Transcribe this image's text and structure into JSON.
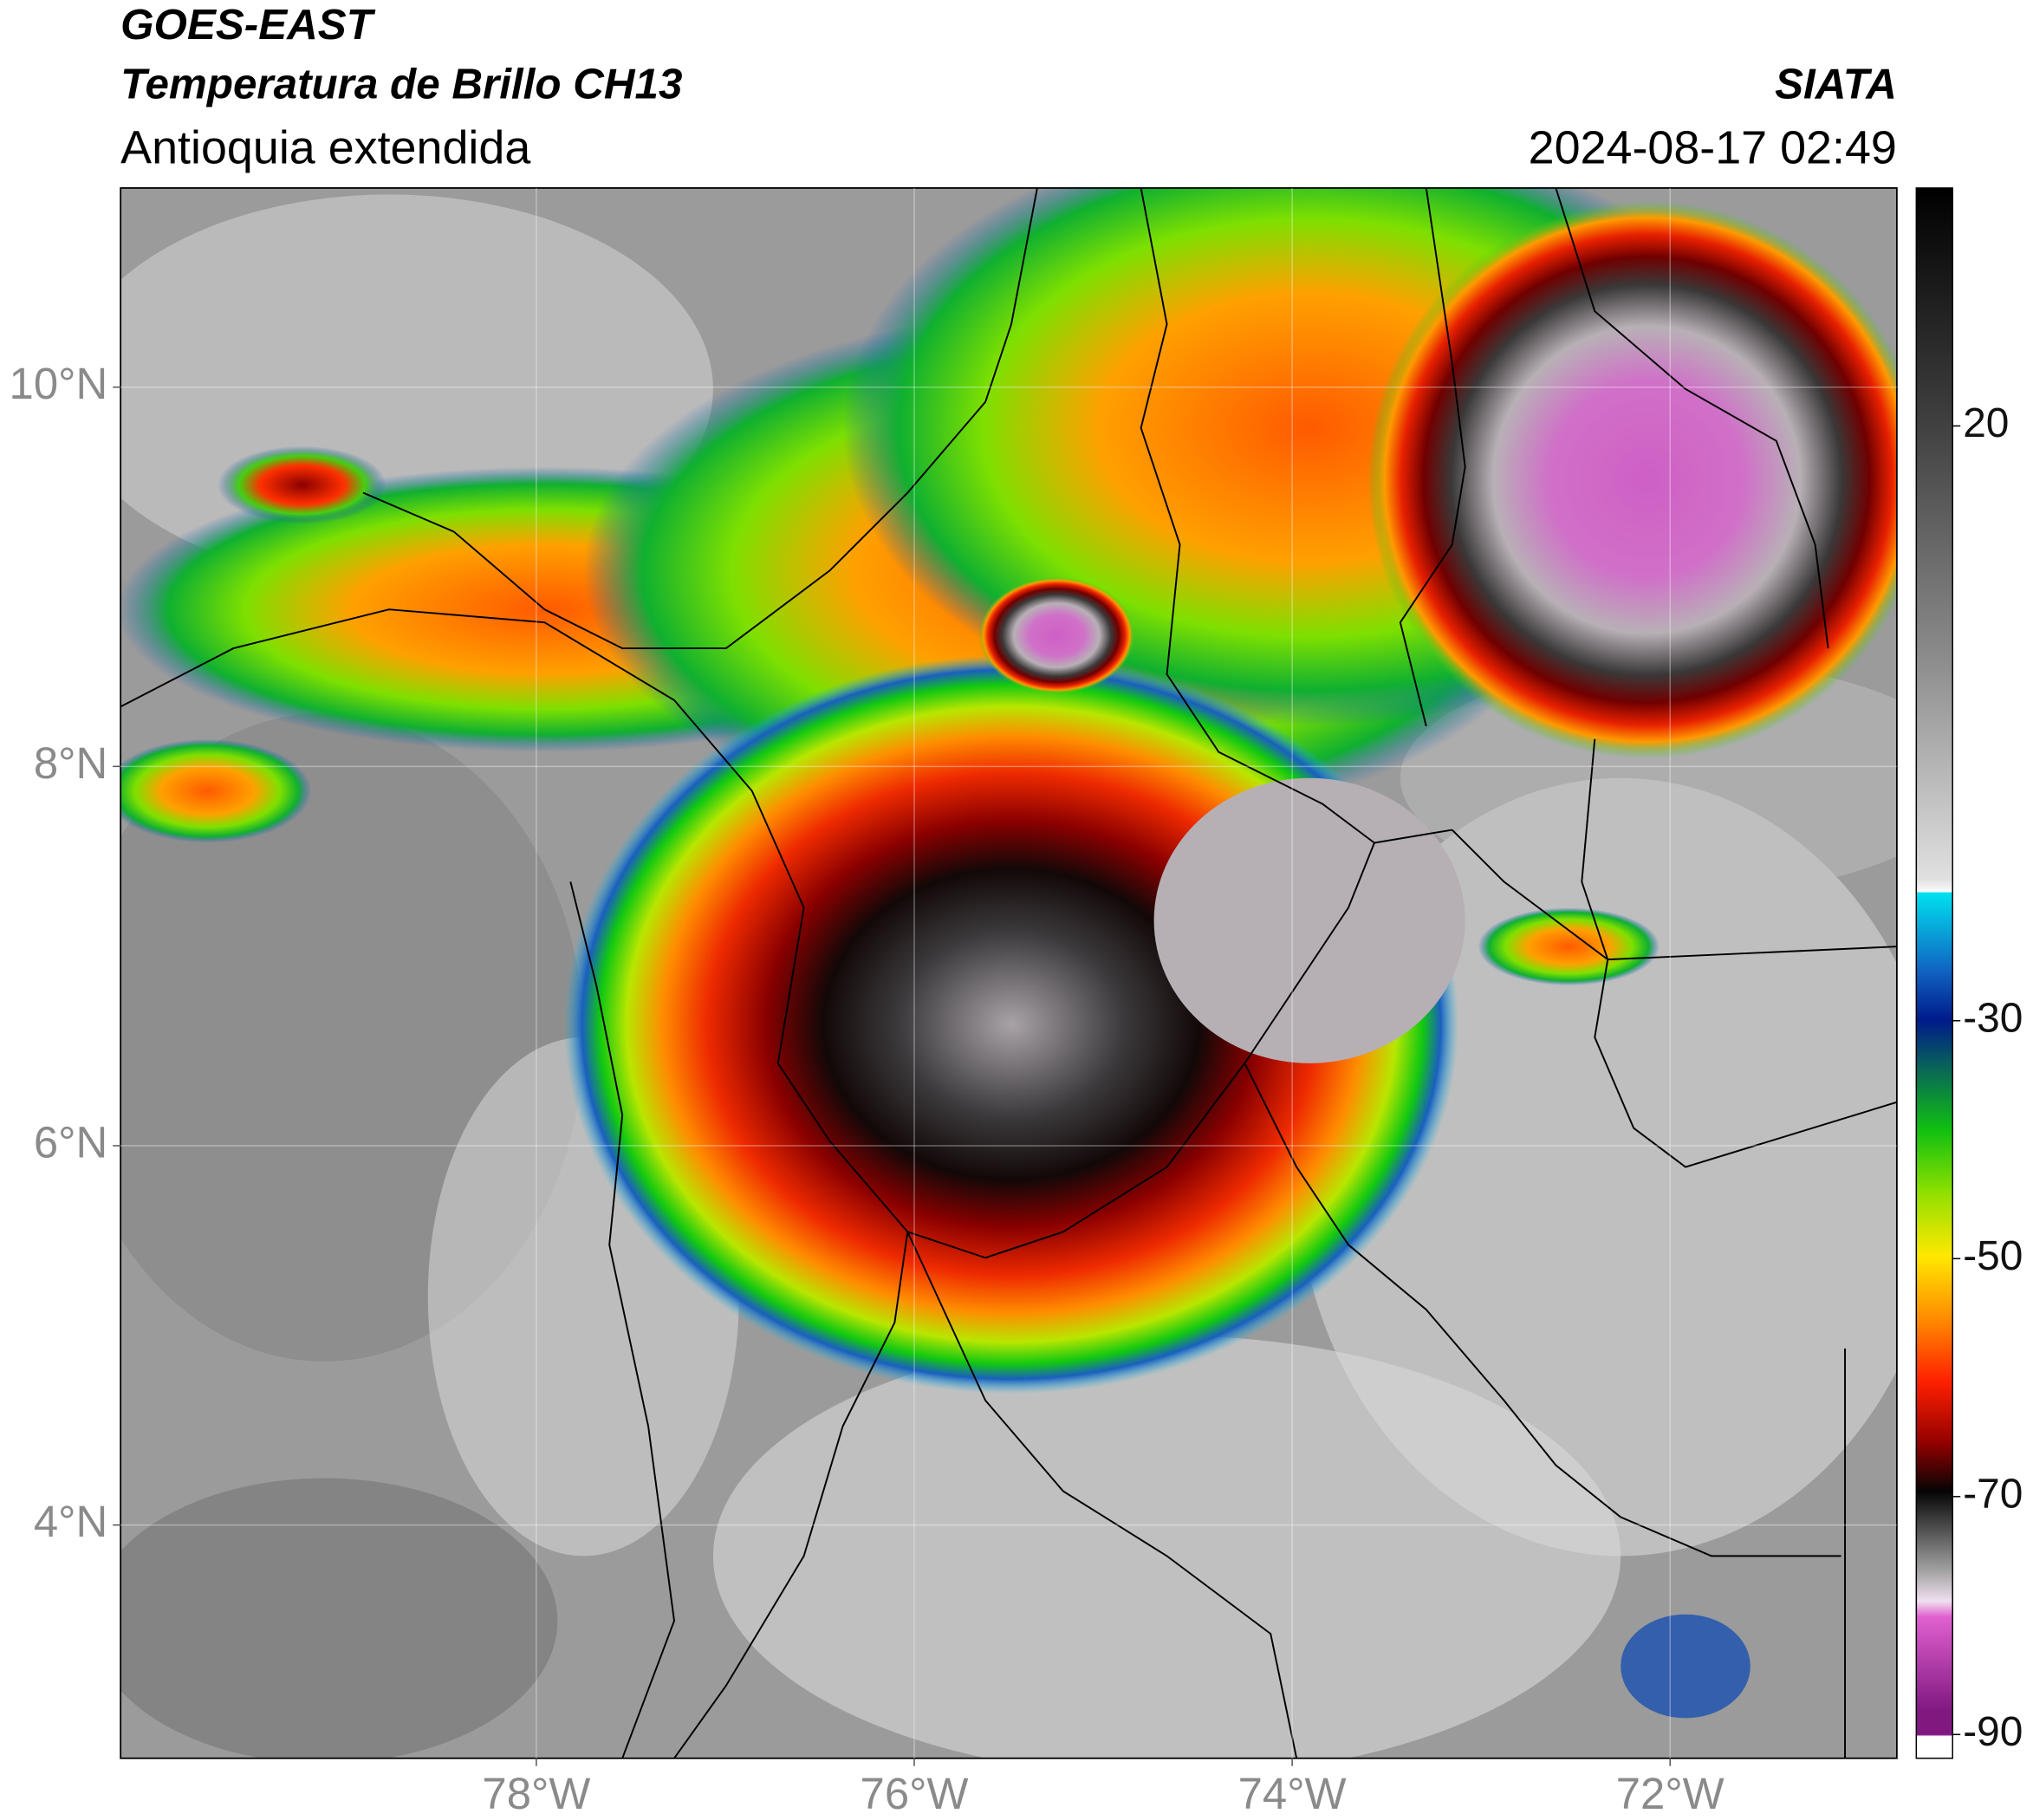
{
  "chart_data": {
    "type": "map",
    "title": "GOES-EAST",
    "subtitle": "Temperatura de Brillo CH13",
    "region": "Antioquia extendida",
    "source": "SIATA",
    "timestamp": "2024-08-17 02:49",
    "xlim": [
      -80.2,
      -70.8
    ],
    "ylim": [
      2.77,
      11.05
    ],
    "xticks": [
      {
        "value": -78,
        "label": "78°W"
      },
      {
        "value": -76,
        "label": "76°W"
      },
      {
        "value": -74,
        "label": "74°W"
      },
      {
        "value": -72,
        "label": "72°W"
      }
    ],
    "yticks": [
      {
        "value": 10,
        "label": "10°N"
      },
      {
        "value": 8,
        "label": "8°N"
      },
      {
        "value": 6,
        "label": "6°N"
      },
      {
        "value": 4,
        "label": "4°N"
      }
    ],
    "grid": true,
    "colorbar": {
      "lim": [
        -92,
        40
      ],
      "ticks": [
        20,
        -30,
        -50,
        -70,
        -90
      ]
    }
  }
}
